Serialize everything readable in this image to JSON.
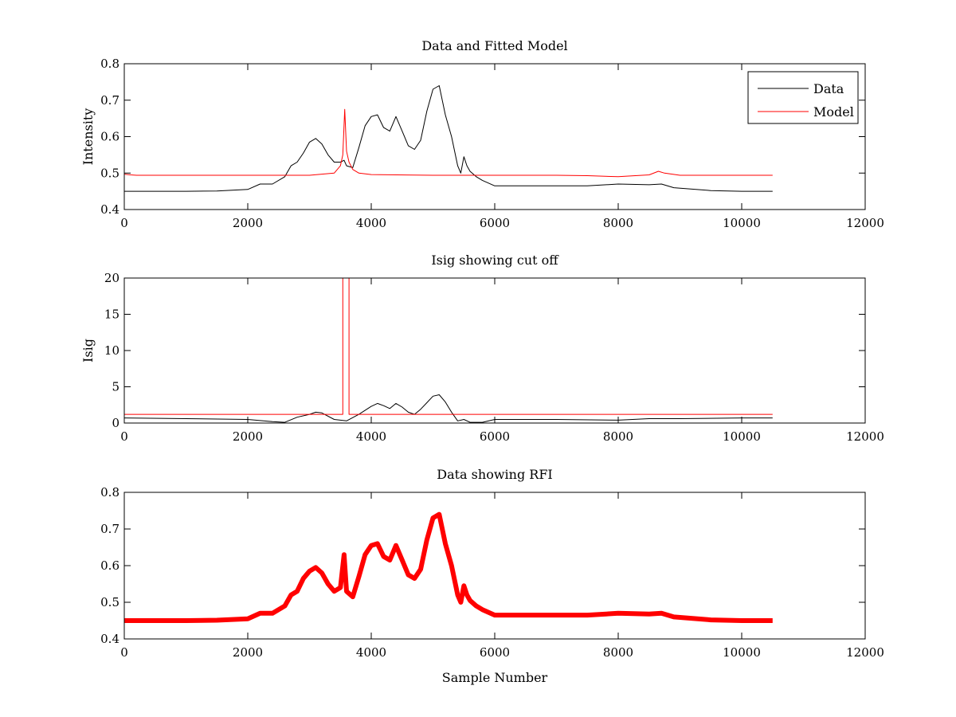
{
  "chart_data": [
    {
      "type": "line",
      "title": "Data and Fitted Model",
      "xlabel": "",
      "ylabel": "Intensity",
      "xlim": [
        0,
        12000
      ],
      "ylim": [
        0.4,
        0.8
      ],
      "xticks": [
        "0",
        "2000",
        "4000",
        "6000",
        "8000",
        "10000",
        "12000"
      ],
      "yticks": [
        "0.4",
        "0.5",
        "0.6",
        "0.7",
        "0.8"
      ],
      "legend": {
        "position": "top-right",
        "entries": [
          "Data",
          "Model"
        ]
      },
      "series": [
        {
          "name": "Data",
          "color": "#000000",
          "x": [
            0,
            500,
            1000,
            1500,
            2000,
            2200,
            2400,
            2600,
            2700,
            2800,
            2900,
            3000,
            3100,
            3200,
            3300,
            3400,
            3500,
            3560,
            3600,
            3700,
            3800,
            3900,
            4000,
            4100,
            4200,
            4300,
            4400,
            4500,
            4600,
            4700,
            4800,
            4900,
            5000,
            5100,
            5200,
            5300,
            5400,
            5450,
            5500,
            5550,
            5600,
            5700,
            5800,
            6000,
            6500,
            7000,
            7500,
            8000,
            8500,
            8700,
            8900,
            9500,
            10000,
            10500
          ],
          "y": [
            0.45,
            0.45,
            0.45,
            0.451,
            0.455,
            0.47,
            0.47,
            0.49,
            0.52,
            0.53,
            0.555,
            0.585,
            0.595,
            0.58,
            0.55,
            0.53,
            0.53,
            0.535,
            0.52,
            0.515,
            0.57,
            0.63,
            0.655,
            0.66,
            0.625,
            0.615,
            0.655,
            0.615,
            0.575,
            0.565,
            0.59,
            0.67,
            0.73,
            0.74,
            0.66,
            0.6,
            0.52,
            0.5,
            0.545,
            0.52,
            0.505,
            0.49,
            0.48,
            0.465,
            0.465,
            0.465,
            0.465,
            0.47,
            0.468,
            0.47,
            0.46,
            0.452,
            0.45,
            0.45
          ]
        },
        {
          "name": "Model",
          "color": "#ff0000",
          "x": [
            0,
            100,
            200,
            1000,
            2000,
            3000,
            3400,
            3500,
            3540,
            3570,
            3600,
            3640,
            3700,
            3800,
            4000,
            5000,
            6000,
            7000,
            7500,
            8000,
            8500,
            8650,
            8750,
            9000,
            10500
          ],
          "y": [
            0.497,
            0.495,
            0.494,
            0.494,
            0.494,
            0.494,
            0.5,
            0.52,
            0.55,
            0.675,
            0.56,
            0.53,
            0.51,
            0.5,
            0.496,
            0.494,
            0.494,
            0.494,
            0.493,
            0.49,
            0.495,
            0.505,
            0.5,
            0.494,
            0.494
          ]
        }
      ]
    },
    {
      "type": "line",
      "title": "Isig showing cut off",
      "xlabel": "",
      "ylabel": "Isig",
      "xlim": [
        0,
        12000
      ],
      "ylim": [
        0,
        20
      ],
      "xticks": [
        "0",
        "2000",
        "4000",
        "6000",
        "8000",
        "10000",
        "12000"
      ],
      "yticks": [
        "0",
        "5",
        "10",
        "15",
        "20"
      ],
      "series": [
        {
          "color": "#000000",
          "x": [
            0,
            1000,
            2000,
            2400,
            2600,
            2800,
            3000,
            3100,
            3200,
            3400,
            3600,
            3800,
            4000,
            4100,
            4200,
            4300,
            4400,
            4500,
            4600,
            4700,
            4800,
            4900,
            5000,
            5100,
            5200,
            5300,
            5400,
            5500,
            5600,
            5800,
            6000,
            7000,
            8000,
            8500,
            9000,
            10000,
            10500
          ],
          "y": [
            0.7,
            0.6,
            0.5,
            0.2,
            0.1,
            0.8,
            1.2,
            1.5,
            1.4,
            0.5,
            0.3,
            1.2,
            2.3,
            2.7,
            2.4,
            2.0,
            2.7,
            2.2,
            1.5,
            1.2,
            1.9,
            2.8,
            3.7,
            3.9,
            2.9,
            1.5,
            0.3,
            0.5,
            0.1,
            0.1,
            0.5,
            0.5,
            0.4,
            0.6,
            0.6,
            0.7,
            0.7
          ]
        },
        {
          "color": "#ff0000",
          "x": [
            0,
            3540,
            3540,
            3640,
            3640,
            10500
          ],
          "y": [
            1.2,
            1.2,
            20,
            20,
            1.2,
            1.2
          ]
        }
      ]
    },
    {
      "type": "line",
      "title": "Data showing RFI",
      "xlabel": "Sample Number",
      "ylabel": "",
      "xlim": [
        0,
        12000
      ],
      "ylim": [
        0.4,
        0.8
      ],
      "xticks": [
        "0",
        "2000",
        "4000",
        "6000",
        "8000",
        "10000",
        "12000"
      ],
      "yticks": [
        "0.4",
        "0.5",
        "0.6",
        "0.7",
        "0.8"
      ],
      "series": [
        {
          "color": "#ff0000",
          "x": [
            0,
            500,
            1000,
            1500,
            2000,
            2200,
            2400,
            2600,
            2700,
            2800,
            2900,
            3000,
            3100,
            3200,
            3300,
            3400,
            3500,
            3560,
            3600,
            3700,
            3800,
            3900,
            4000,
            4100,
            4200,
            4300,
            4400,
            4500,
            4600,
            4700,
            4800,
            4900,
            5000,
            5100,
            5200,
            5300,
            5400,
            5450,
            5500,
            5550,
            5600,
            5700,
            5800,
            6000,
            6500,
            7000,
            7500,
            8000,
            8500,
            8700,
            8900,
            9500,
            10000,
            10500
          ],
          "y": [
            0.45,
            0.45,
            0.45,
            0.451,
            0.455,
            0.47,
            0.47,
            0.49,
            0.52,
            0.53,
            0.565,
            0.585,
            0.595,
            0.58,
            0.55,
            0.53,
            0.54,
            0.63,
            0.53,
            0.515,
            0.57,
            0.63,
            0.655,
            0.66,
            0.625,
            0.615,
            0.655,
            0.615,
            0.575,
            0.565,
            0.59,
            0.67,
            0.73,
            0.74,
            0.66,
            0.6,
            0.52,
            0.5,
            0.545,
            0.52,
            0.505,
            0.49,
            0.48,
            0.465,
            0.465,
            0.465,
            0.465,
            0.47,
            0.468,
            0.47,
            0.46,
            0.452,
            0.45,
            0.45
          ]
        }
      ]
    }
  ]
}
